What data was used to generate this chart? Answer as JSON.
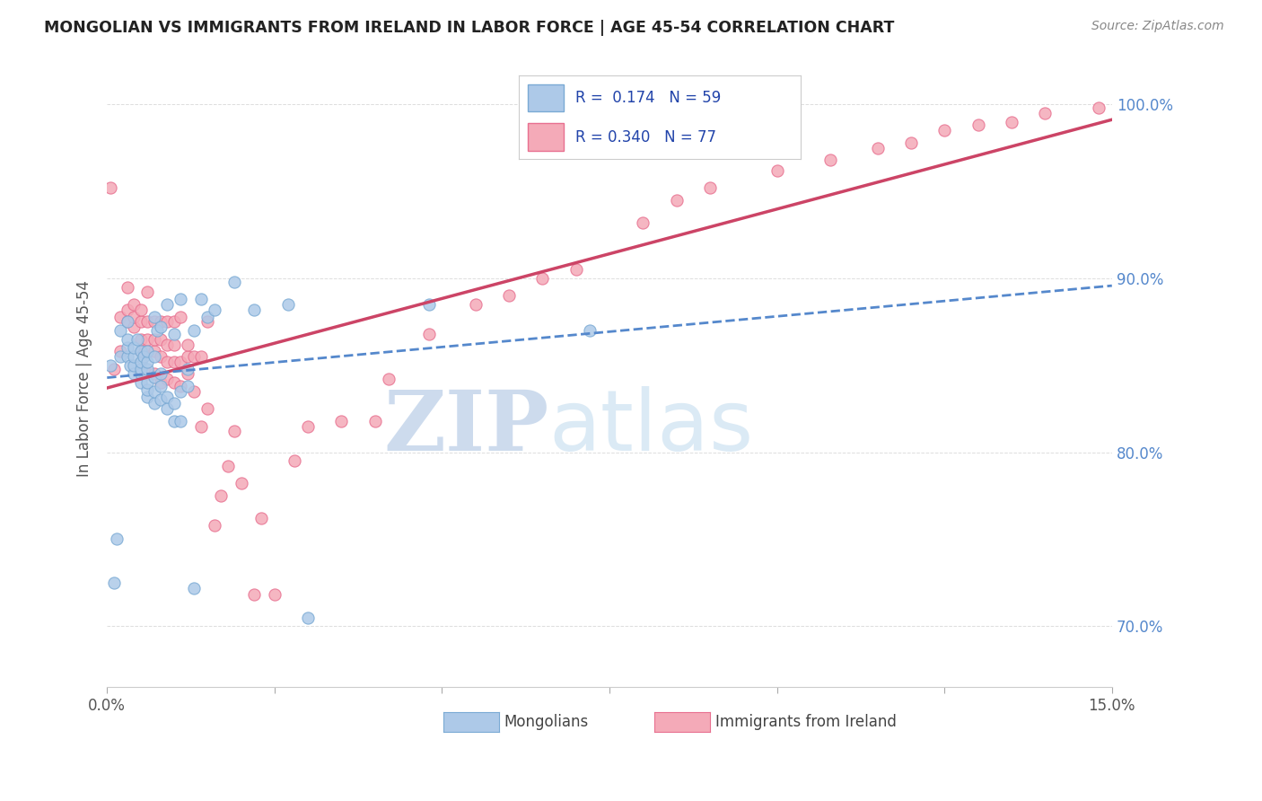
{
  "title": "MONGOLIAN VS IMMIGRANTS FROM IRELAND IN LABOR FORCE | AGE 45-54 CORRELATION CHART",
  "source": "Source: ZipAtlas.com",
  "ylabel": "In Labor Force | Age 45-54",
  "yticks": [
    0.7,
    0.8,
    0.9,
    1.0
  ],
  "ytick_labels": [
    "70.0%",
    "80.0%",
    "90.0%",
    "100.0%"
  ],
  "xmin": 0.0,
  "xmax": 0.15,
  "ymin": 0.665,
  "ymax": 1.02,
  "mongolian_color": "#adc9e8",
  "ireland_color": "#f4aab8",
  "mongolian_edge": "#7aaad4",
  "ireland_edge": "#e87090",
  "trendline_mongolian_color": "#5588cc",
  "trendline_ireland_color": "#cc4466",
  "R_mongolian": 0.174,
  "N_mongolian": 59,
  "R_ireland": 0.34,
  "N_ireland": 77,
  "legend_label_mongolian": "Mongolians",
  "legend_label_ireland": "Immigrants from Ireland",
  "watermark_zip": "ZIP",
  "watermark_atlas": "atlas",
  "background_color": "#ffffff",
  "mongolian_x": [
    0.0005,
    0.001,
    0.0015,
    0.002,
    0.002,
    0.003,
    0.003,
    0.003,
    0.003,
    0.0035,
    0.004,
    0.004,
    0.004,
    0.004,
    0.0045,
    0.005,
    0.005,
    0.005,
    0.005,
    0.005,
    0.0055,
    0.006,
    0.006,
    0.006,
    0.006,
    0.006,
    0.006,
    0.007,
    0.007,
    0.007,
    0.007,
    0.007,
    0.0075,
    0.008,
    0.008,
    0.008,
    0.008,
    0.009,
    0.009,
    0.009,
    0.01,
    0.01,
    0.01,
    0.011,
    0.011,
    0.011,
    0.012,
    0.012,
    0.013,
    0.013,
    0.014,
    0.015,
    0.016,
    0.019,
    0.022,
    0.027,
    0.03,
    0.048,
    0.072
  ],
  "mongolian_y": [
    0.85,
    0.725,
    0.75,
    0.855,
    0.87,
    0.855,
    0.86,
    0.865,
    0.875,
    0.85,
    0.845,
    0.85,
    0.855,
    0.86,
    0.865,
    0.84,
    0.845,
    0.848,
    0.852,
    0.858,
    0.855,
    0.832,
    0.836,
    0.84,
    0.848,
    0.852,
    0.858,
    0.828,
    0.835,
    0.843,
    0.855,
    0.878,
    0.87,
    0.83,
    0.838,
    0.845,
    0.872,
    0.825,
    0.832,
    0.885,
    0.818,
    0.828,
    0.868,
    0.818,
    0.835,
    0.888,
    0.838,
    0.848,
    0.722,
    0.87,
    0.888,
    0.878,
    0.882,
    0.898,
    0.882,
    0.885,
    0.705,
    0.885,
    0.87
  ],
  "ireland_x": [
    0.0005,
    0.001,
    0.002,
    0.002,
    0.003,
    0.003,
    0.003,
    0.004,
    0.004,
    0.004,
    0.005,
    0.005,
    0.005,
    0.005,
    0.006,
    0.006,
    0.006,
    0.006,
    0.006,
    0.007,
    0.007,
    0.007,
    0.007,
    0.008,
    0.008,
    0.008,
    0.008,
    0.009,
    0.009,
    0.009,
    0.009,
    0.01,
    0.01,
    0.01,
    0.01,
    0.011,
    0.011,
    0.011,
    0.012,
    0.012,
    0.012,
    0.013,
    0.013,
    0.014,
    0.014,
    0.015,
    0.015,
    0.016,
    0.017,
    0.018,
    0.019,
    0.02,
    0.022,
    0.023,
    0.025,
    0.028,
    0.03,
    0.035,
    0.04,
    0.042,
    0.048,
    0.055,
    0.06,
    0.065,
    0.07,
    0.08,
    0.085,
    0.09,
    0.1,
    0.108,
    0.115,
    0.12,
    0.125,
    0.13,
    0.135,
    0.14,
    0.148
  ],
  "ireland_y": [
    0.952,
    0.848,
    0.858,
    0.878,
    0.875,
    0.882,
    0.895,
    0.872,
    0.878,
    0.885,
    0.858,
    0.865,
    0.875,
    0.882,
    0.845,
    0.858,
    0.865,
    0.875,
    0.892,
    0.845,
    0.858,
    0.865,
    0.875,
    0.84,
    0.855,
    0.865,
    0.875,
    0.842,
    0.852,
    0.862,
    0.875,
    0.84,
    0.852,
    0.862,
    0.875,
    0.838,
    0.852,
    0.878,
    0.845,
    0.855,
    0.862,
    0.835,
    0.855,
    0.815,
    0.855,
    0.825,
    0.875,
    0.758,
    0.775,
    0.792,
    0.812,
    0.782,
    0.718,
    0.762,
    0.718,
    0.795,
    0.815,
    0.818,
    0.818,
    0.842,
    0.868,
    0.885,
    0.89,
    0.9,
    0.905,
    0.932,
    0.945,
    0.952,
    0.962,
    0.968,
    0.975,
    0.978,
    0.985,
    0.988,
    0.99,
    0.995,
    0.998
  ]
}
